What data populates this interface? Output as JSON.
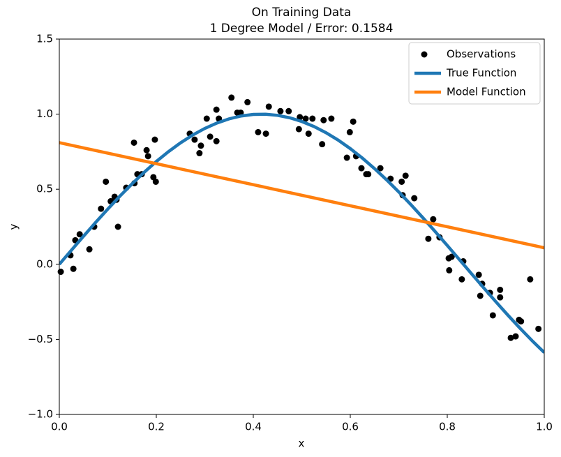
{
  "chart_data": {
    "type": "line",
    "title": "On Training Data",
    "subtitle": "1 Degree Model / Error: 0.1584",
    "x_label": "x",
    "y_label": "y",
    "xlim": [
      0,
      1
    ],
    "ylim": [
      -1,
      1.5
    ],
    "xticks": [
      {
        "value": 0,
        "label": "0.0"
      },
      {
        "value": 0.2,
        "label": "0.2"
      },
      {
        "value": 0.4,
        "label": "0.4"
      },
      {
        "value": 0.6,
        "label": "0.6"
      },
      {
        "value": 0.8,
        "label": "0.8"
      },
      {
        "value": 1,
        "label": "1.0"
      }
    ],
    "yticks": [
      {
        "value": -1,
        "label": "−1.0"
      },
      {
        "value": -0.5,
        "label": "−0.5"
      },
      {
        "value": 0,
        "label": "0.0"
      },
      {
        "value": 0.5,
        "label": "0.5"
      },
      {
        "value": 1,
        "label": "1.0"
      },
      {
        "value": 1.5,
        "label": "1.5"
      }
    ],
    "legend": "upper right",
    "series": [
      {
        "name": "Observations",
        "type": "scatter",
        "color": "#000000",
        "x": [
          0.003,
          0.023,
          0.029,
          0.033,
          0.042,
          0.062,
          0.072,
          0.086,
          0.096,
          0.106,
          0.114,
          0.118,
          0.121,
          0.138,
          0.154,
          0.155,
          0.161,
          0.17,
          0.18,
          0.183,
          0.194,
          0.197,
          0.199,
          0.269,
          0.279,
          0.289,
          0.292,
          0.304,
          0.311,
          0.324,
          0.324,
          0.329,
          0.355,
          0.367,
          0.374,
          0.388,
          0.41,
          0.426,
          0.432,
          0.456,
          0.473,
          0.494,
          0.496,
          0.508,
          0.514,
          0.522,
          0.542,
          0.545,
          0.561,
          0.593,
          0.599,
          0.606,
          0.612,
          0.623,
          0.633,
          0.637,
          0.662,
          0.683,
          0.706,
          0.708,
          0.714,
          0.732,
          0.761,
          0.771,
          0.784,
          0.803,
          0.804,
          0.809,
          0.833,
          0.83,
          0.865,
          0.868,
          0.872,
          0.888,
          0.894,
          0.909,
          0.909,
          0.931,
          0.941,
          0.948,
          0.952,
          0.971,
          0.988
        ],
        "values": [
          -0.05,
          0.06,
          -0.03,
          0.16,
          0.2,
          0.1,
          0.25,
          0.37,
          0.55,
          0.42,
          0.45,
          0.43,
          0.25,
          0.51,
          0.81,
          0.54,
          0.6,
          0.6,
          0.76,
          0.72,
          0.58,
          0.83,
          0.55,
          0.87,
          0.83,
          0.74,
          0.79,
          0.97,
          0.85,
          0.82,
          1.03,
          0.97,
          1.11,
          1.01,
          1.01,
          1.08,
          0.88,
          0.87,
          1.05,
          1.02,
          1.02,
          0.9,
          0.98,
          0.97,
          0.87,
          0.97,
          0.8,
          0.96,
          0.97,
          0.71,
          0.88,
          0.95,
          0.72,
          0.64,
          0.6,
          0.6,
          0.64,
          0.57,
          0.55,
          0.46,
          0.59,
          0.44,
          0.17,
          0.3,
          0.18,
          0.04,
          -0.04,
          0.05,
          0.02,
          -0.1,
          -0.07,
          -0.21,
          -0.13,
          -0.19,
          -0.34,
          -0.17,
          -0.22,
          -0.49,
          -0.48,
          -0.37,
          -0.38,
          -0.1,
          -0.43
        ]
      },
      {
        "name": "True Function",
        "type": "line",
        "color": "#1f77b4",
        "x": [
          0,
          0.025,
          0.05,
          0.075,
          0.1,
          0.125,
          0.15,
          0.175,
          0.2,
          0.225,
          0.25,
          0.275,
          0.3,
          0.325,
          0.35,
          0.375,
          0.4,
          0.425,
          0.45,
          0.475,
          0.5,
          0.525,
          0.55,
          0.575,
          0.6,
          0.625,
          0.65,
          0.675,
          0.7,
          0.725,
          0.75,
          0.775,
          0.8,
          0.825,
          0.85,
          0.875,
          0.9,
          0.925,
          0.95,
          0.975,
          1
        ],
        "values": [
          0,
          0.0941,
          0.1874,
          0.279,
          0.3681,
          0.454,
          0.5358,
          0.6129,
          0.6845,
          0.7501,
          0.809,
          0.8607,
          0.9048,
          0.9409,
          0.9686,
          0.9877,
          0.998,
          0.9995,
          0.9921,
          0.9759,
          0.9511,
          0.9178,
          0.8763,
          0.8271,
          0.7705,
          0.7071,
          0.6374,
          0.5621,
          0.4818,
          0.3971,
          0.309,
          0.2181,
          0.1253,
          0.0314,
          -0.0628,
          -0.1564,
          -0.2487,
          -0.3387,
          -0.4258,
          -0.509,
          -0.5878
        ]
      },
      {
        "name": "Model Function",
        "type": "line",
        "color": "#ff7f0e",
        "x": [
          0,
          1
        ],
        "values": [
          0.81,
          0.11
        ]
      }
    ]
  }
}
